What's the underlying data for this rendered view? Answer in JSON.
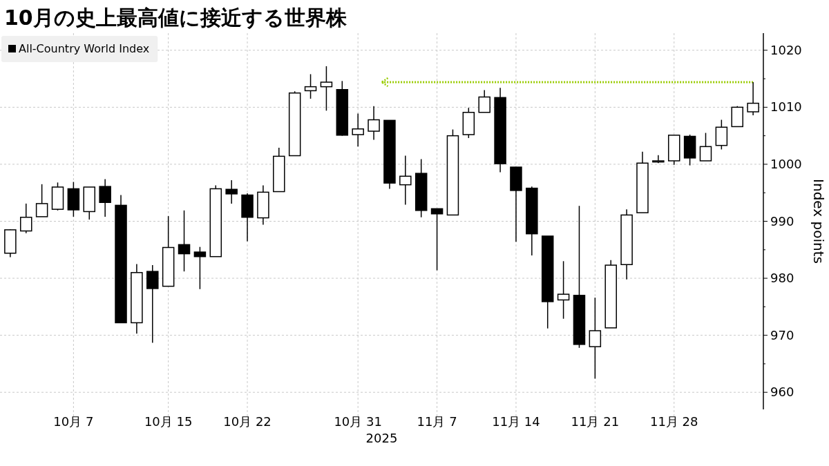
{
  "chart_data": {
    "type": "candlestick",
    "title": "10月の史上最高値に接近する世界株",
    "xlabel": "2025",
    "ylabel": "Index points",
    "categories": [
      null,
      null,
      null,
      null,
      "10月 7",
      null,
      null,
      null,
      null,
      null,
      "10月 15",
      null,
      null,
      null,
      null,
      "10月 22",
      null,
      null,
      null,
      null,
      null,
      null,
      "10月 31",
      null,
      null,
      null,
      null,
      "11月 7",
      null,
      null,
      null,
      null,
      "11月 14",
      null,
      null,
      null,
      null,
      "11月 21",
      null,
      null,
      null,
      null,
      "11月 28",
      null,
      null,
      null,
      null,
      null
    ],
    "series": [
      {
        "name": "All-Country World Index",
        "color": "#000000",
        "ohlc": [
          [
            984.4,
            988.6,
            983.7,
            988.5
          ],
          [
            988.3,
            993.1,
            987.9,
            990.7
          ],
          [
            990.8,
            996.5,
            990.8,
            993.1
          ],
          [
            992.1,
            996.8,
            991.9,
            996.0
          ],
          [
            995.7,
            996.9,
            990.8,
            992.0
          ],
          [
            991.7,
            996.0,
            990.3,
            996.0
          ],
          [
            996.1,
            997.4,
            990.8,
            993.3
          ],
          [
            992.8,
            994.6,
            972.2,
            972.2
          ],
          [
            972.2,
            982.5,
            970.3,
            981.0
          ],
          [
            981.2,
            982.3,
            968.7,
            978.2
          ],
          [
            978.6,
            990.9,
            978.6,
            985.4
          ],
          [
            985.9,
            991.9,
            981.2,
            984.3
          ],
          [
            984.6,
            985.5,
            978.1,
            983.8
          ],
          [
            983.8,
            996.3,
            983.8,
            995.7
          ],
          [
            995.6,
            997.2,
            993.1,
            994.8
          ],
          [
            994.6,
            994.9,
            986.5,
            990.7
          ],
          [
            990.6,
            996.3,
            989.4,
            995.1
          ],
          [
            995.2,
            1002.9,
            995.2,
            1001.4
          ],
          [
            1001.5,
            1012.8,
            1001.5,
            1012.5
          ],
          [
            1012.9,
            1015.8,
            1011.5,
            1013.6
          ],
          [
            1013.6,
            1017.2,
            1009.4,
            1014.4
          ],
          [
            1013.1,
            1014.6,
            1005.0,
            1005.1
          ],
          [
            1005.2,
            1008.9,
            1003.1,
            1006.2
          ],
          [
            1005.8,
            1010.2,
            1004.3,
            1007.8
          ],
          [
            1007.7,
            1007.7,
            995.7,
            996.7
          ],
          [
            996.4,
            1001.5,
            992.9,
            997.9
          ],
          [
            998.4,
            1000.9,
            990.7,
            991.9
          ],
          [
            992.2,
            992.2,
            981.4,
            991.3
          ],
          [
            991.1,
            1006.1,
            991.1,
            1005.0
          ],
          [
            1005.2,
            1009.9,
            1004.6,
            1009.1
          ],
          [
            1009.1,
            1013.0,
            1009.1,
            1011.8
          ],
          [
            1011.7,
            1013.4,
            998.6,
            1000.1
          ],
          [
            999.5,
            999.5,
            986.4,
            995.4
          ],
          [
            995.8,
            996.1,
            984.0,
            987.8
          ],
          [
            987.4,
            987.4,
            971.2,
            975.9
          ],
          [
            976.2,
            983.0,
            972.9,
            977.2
          ],
          [
            977.0,
            992.7,
            967.8,
            968.4
          ],
          [
            968.0,
            976.6,
            962.4,
            970.8
          ],
          [
            971.3,
            983.2,
            971.3,
            982.3
          ],
          [
            982.4,
            992.1,
            979.8,
            991.1
          ],
          [
            991.5,
            1002.2,
            991.5,
            1000.2
          ],
          [
            1000.4,
            1001.6,
            1000.2,
            1000.6
          ],
          [
            1000.6,
            1005.1,
            999.9,
            1005.1
          ],
          [
            1004.9,
            1005.2,
            999.8,
            1001.1
          ],
          [
            1000.6,
            1005.5,
            1000.6,
            1003.1
          ],
          [
            1003.3,
            1007.8,
            1002.6,
            1006.5
          ],
          [
            1006.6,
            1010.2,
            1006.6,
            1010.0
          ],
          [
            1009.2,
            1014.4,
            1008.6,
            1010.7
          ]
        ]
      }
    ],
    "ylim": [
      957,
      1023
    ],
    "yticks": [
      960,
      970,
      980,
      990,
      1000,
      1010,
      1020
    ],
    "ref_lines": [
      {
        "axis": "y",
        "value": 1014.4,
        "color": "#99cc00",
        "line_style": "dotted"
      }
    ],
    "grid": true,
    "legend": "top left"
  }
}
